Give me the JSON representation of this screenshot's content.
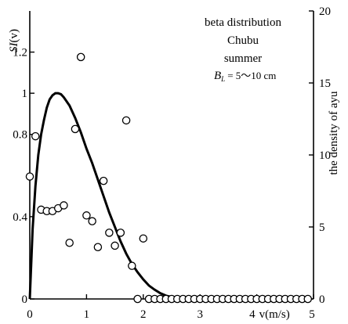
{
  "chart_data": {
    "type": "scatter",
    "annotations": [
      "beta distribution",
      "Chubu",
      "summer",
      "B",
      "L",
      "= 5〜10 cm"
    ],
    "left_axis": {
      "label_main": "SI",
      "label_arg": "(v)",
      "ylim": [
        0,
        1.4
      ],
      "ticks": [
        0,
        0.4,
        0.8,
        1,
        1.2
      ],
      "tick_labels": [
        "0",
        "0.4",
        "0.8",
        "1",
        "1.2"
      ]
    },
    "right_axis": {
      "label": "the density of ayu",
      "ylim": [
        0,
        20
      ],
      "ticks": [
        0,
        5,
        10,
        15,
        20
      ],
      "tick_labels": [
        "0",
        "5",
        "10",
        "15",
        "20"
      ]
    },
    "x_axis": {
      "label": "v(m/s)",
      "xlim": [
        0,
        5
      ],
      "ticks": [
        0,
        1,
        2,
        3,
        4,
        5
      ],
      "tick_labels": [
        "0",
        "1",
        "2",
        "3",
        "4",
        "5"
      ]
    },
    "series": [
      {
        "type": "line",
        "axis": "left",
        "x": [
          0,
          0.05,
          0.1,
          0.15,
          0.2,
          0.25,
          0.3,
          0.35,
          0.4,
          0.45,
          0.5,
          0.55,
          0.6,
          0.7,
          0.8,
          0.9,
          1.0,
          1.1,
          1.2,
          1.3,
          1.4,
          1.5,
          1.6,
          1.7,
          1.8,
          1.9,
          2.0,
          2.1,
          2.2,
          2.3,
          2.4,
          2.5,
          2.6,
          2.7,
          2.8,
          2.9,
          3.0,
          3.2,
          3.4,
          3.6
        ],
        "y": [
          0,
          0.34,
          0.55,
          0.7,
          0.8,
          0.87,
          0.93,
          0.97,
          0.99,
          1.0,
          1.0,
          0.995,
          0.98,
          0.94,
          0.88,
          0.81,
          0.73,
          0.66,
          0.58,
          0.5,
          0.42,
          0.35,
          0.28,
          0.22,
          0.17,
          0.13,
          0.095,
          0.065,
          0.045,
          0.028,
          0.016,
          0.009,
          0.004,
          0.002,
          0.0008,
          0.0002,
          0,
          0,
          0,
          0
        ]
      },
      {
        "type": "scatter",
        "axis": "right",
        "x": [
          0,
          0.1,
          0.2,
          0.3,
          0.4,
          0.5,
          0.6,
          0.7,
          0.8,
          0.9,
          1.0,
          1.1,
          1.2,
          1.3,
          1.4,
          1.5,
          1.6,
          1.7,
          1.8,
          1.9,
          2.0,
          2.1,
          2.2,
          2.3,
          2.4,
          2.5,
          2.6,
          2.7,
          2.8,
          2.9,
          3.0,
          3.1,
          3.2,
          3.3,
          3.4,
          3.5,
          3.6,
          3.7,
          3.8,
          3.9,
          4.0,
          4.1,
          4.2,
          4.3,
          4.4,
          4.5,
          4.6,
          4.7,
          4.8,
          4.9
        ],
        "y": [
          8.5,
          11.3,
          6.2,
          6.1,
          6.1,
          6.3,
          6.5,
          3.9,
          11.8,
          16.8,
          5.8,
          5.4,
          3.6,
          8.2,
          4.6,
          3.7,
          4.6,
          12.4,
          2.3,
          0,
          4.2,
          0,
          0,
          0,
          0,
          0,
          0,
          0,
          0,
          0,
          0,
          0,
          0,
          0,
          0,
          0,
          0,
          0,
          0,
          0,
          0,
          0,
          0,
          0,
          0,
          0,
          0,
          0,
          0,
          0
        ]
      }
    ]
  }
}
